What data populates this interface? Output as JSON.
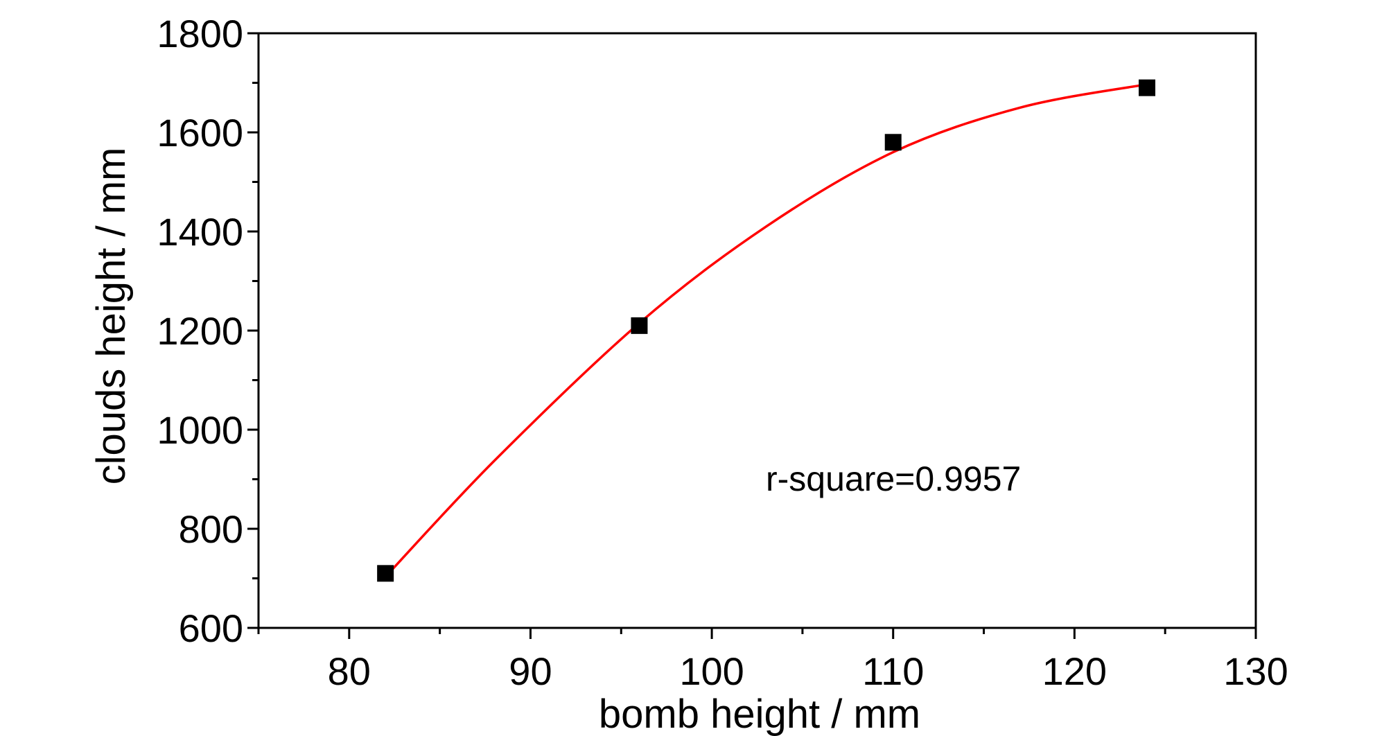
{
  "chart_data": {
    "type": "scatter",
    "xlabel": "bomb height  / mm",
    "ylabel": "clouds height / mm",
    "xlim": [
      75,
      130
    ],
    "ylim": [
      600,
      1800
    ],
    "x_ticks": [
      80,
      90,
      100,
      110,
      120,
      130
    ],
    "y_ticks": [
      600,
      800,
      1000,
      1200,
      1400,
      1600,
      1800
    ],
    "grid": false,
    "points": [
      {
        "x": 82,
        "y": 710
      },
      {
        "x": 96,
        "y": 1210
      },
      {
        "x": 110,
        "y": 1580
      },
      {
        "x": 124,
        "y": 1690
      }
    ],
    "fit": {
      "type": "polynomial-2",
      "color": "#ff0000",
      "x_range": [
        82,
        124
      ],
      "samples": [
        {
          "x": 82,
          "y": 703
        },
        {
          "x": 88,
          "y": 937
        },
        {
          "x": 96,
          "y": 1215
        },
        {
          "x": 103,
          "y": 1410
        },
        {
          "x": 110,
          "y": 1560
        },
        {
          "x": 117,
          "y": 1650
        },
        {
          "x": 124,
          "y": 1697
        }
      ]
    },
    "annotation": "r-square=0.9957",
    "marker_color": "#000000"
  }
}
